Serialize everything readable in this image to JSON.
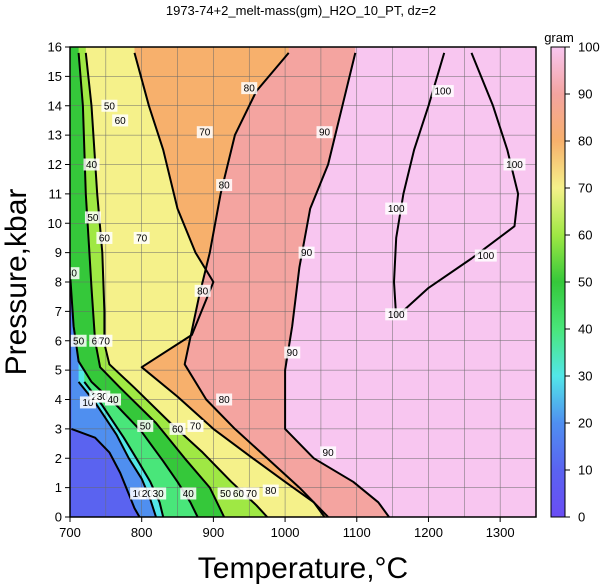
{
  "chart_data": {
    "type": "heatmap",
    "title": "1973-74+2_melt-mass(gm)_H2O_10_PT, dz=2",
    "xlabel": "Temperature,°C",
    "ylabel": "Pressure,kbar",
    "xlim": [
      700,
      1350
    ],
    "ylim": [
      0,
      16
    ],
    "x_ticks": [
      700,
      800,
      900,
      1000,
      1100,
      1200,
      1300
    ],
    "y_ticks": [
      0,
      1,
      2,
      3,
      4,
      5,
      6,
      7,
      8,
      9,
      10,
      11,
      12,
      13,
      14,
      15,
      16
    ],
    "grid": true,
    "colorbar": {
      "label": "gram",
      "range": [
        0,
        100
      ],
      "ticks": [
        0,
        10,
        20,
        30,
        40,
        50,
        60,
        70,
        80,
        90,
        100
      ],
      "placement": "right"
    },
    "contours": [
      {
        "level": 10,
        "points": [
          [
            702,
            3.0
          ],
          [
            735,
            2.7
          ],
          [
            755,
            2.2
          ],
          [
            770,
            1.5
          ],
          [
            780,
            0.9
          ],
          [
            790,
            0.3
          ],
          [
            797,
            0.0
          ]
        ],
        "labels": [
          [
            725,
            3.9
          ],
          [
            795,
            0.8
          ]
        ]
      },
      {
        "level": 20,
        "points": [
          [
            712,
            4.6
          ],
          [
            735,
            3.9
          ],
          [
            765,
            2.8
          ],
          [
            782,
            2.0
          ],
          [
            800,
            1.3
          ],
          [
            812,
            0.6
          ],
          [
            820,
            0.0
          ]
        ],
        "labels": [
          [
            738,
            4.1
          ],
          [
            808,
            0.8
          ]
        ]
      },
      {
        "level": 30,
        "points": [
          [
            720,
            4.6
          ],
          [
            745,
            3.8
          ],
          [
            775,
            2.7
          ],
          [
            795,
            1.9
          ],
          [
            812,
            1.2
          ],
          [
            825,
            0.5
          ],
          [
            830,
            0.0
          ]
        ],
        "labels": [
          [
            745,
            4.1
          ],
          [
            823,
            0.8
          ]
        ]
      },
      {
        "level": 40,
        "points": [
          [
            700,
            8.3
          ],
          [
            705,
            6.5
          ],
          [
            712,
            5.3
          ],
          [
            730,
            4.6
          ],
          [
            765,
            3.8
          ],
          [
            800,
            2.9
          ],
          [
            830,
            1.9
          ],
          [
            850,
            1.2
          ],
          [
            868,
            0.5
          ],
          [
            878,
            0.0
          ]
        ],
        "labels": [
          [
            702,
            8.3
          ],
          [
            760,
            4.0
          ],
          [
            865,
            0.8
          ],
          [
            730,
            12.0
          ]
        ]
      },
      {
        "level": 50,
        "points": [
          [
            712,
            15.8
          ],
          [
            718,
            14.0
          ],
          [
            722,
            11.0
          ],
          [
            727,
            9.0
          ],
          [
            730,
            7.8
          ],
          [
            735,
            6.0
          ],
          [
            742,
            5.1
          ],
          [
            770,
            4.4
          ],
          [
            820,
            3.2
          ],
          [
            860,
            2.0
          ],
          [
            895,
            1.0
          ],
          [
            915,
            0.0
          ]
        ],
        "labels": [
          [
            732,
            10.2
          ],
          [
            712,
            6.0
          ],
          [
            805,
            3.1
          ],
          [
            917,
            0.8
          ],
          [
            755,
            14.0
          ]
        ]
      },
      {
        "level": 60,
        "points": [
          [
            722,
            15.8
          ],
          [
            730,
            14.0
          ],
          [
            738,
            11.0
          ],
          [
            745,
            9.0
          ],
          [
            748,
            7.0
          ],
          [
            748,
            5.9
          ],
          [
            755,
            5.2
          ],
          [
            790,
            4.4
          ],
          [
            840,
            3.2
          ],
          [
            885,
            2.2
          ],
          [
            925,
            1.2
          ],
          [
            960,
            0.4
          ],
          [
            975,
            0.0
          ]
        ],
        "labels": [
          [
            748,
            9.5
          ],
          [
            738,
            6.0
          ],
          [
            850,
            3.0
          ],
          [
            935,
            0.8
          ],
          [
            770,
            13.5
          ]
        ]
      },
      {
        "level": 70,
        "points": [
          [
            790,
            15.8
          ],
          [
            810,
            14.0
          ],
          [
            830,
            12.5
          ],
          [
            850,
            10.5
          ],
          [
            875,
            9.0
          ],
          [
            900,
            8.0
          ],
          [
            870,
            6.2
          ],
          [
            800,
            5.1
          ],
          [
            850,
            4.1
          ],
          [
            900,
            3.0
          ],
          [
            955,
            2.0
          ],
          [
            1000,
            1.2
          ],
          [
            1040,
            0.5
          ],
          [
            1055,
            0.0
          ]
        ],
        "labels": [
          [
            800,
            9.5
          ],
          [
            748,
            6.0
          ],
          [
            875,
            3.1
          ],
          [
            953,
            0.8
          ],
          [
            888,
            13.1
          ]
        ]
      },
      {
        "level": 80,
        "points": [
          [
            1005,
            15.8
          ],
          [
            960,
            14.5
          ],
          [
            930,
            13.0
          ],
          [
            910,
            11.0
          ],
          [
            895,
            9.0
          ],
          [
            880,
            7.5
          ],
          [
            860,
            5.2
          ],
          [
            890,
            4.0
          ],
          [
            930,
            3.0
          ],
          [
            975,
            2.0
          ],
          [
            1020,
            1.0
          ],
          [
            1060,
            0.0
          ]
        ],
        "labels": [
          [
            950,
            14.6
          ],
          [
            915,
            11.3
          ],
          [
            885,
            7.7
          ],
          [
            915,
            4.0
          ],
          [
            980,
            0.9
          ]
        ]
      },
      {
        "level": 90,
        "points": [
          [
            1098,
            15.8
          ],
          [
            1080,
            14.0
          ],
          [
            1060,
            12.0
          ],
          [
            1035,
            10.5
          ],
          [
            1020,
            8.5
          ],
          [
            1010,
            6.5
          ],
          [
            1000,
            5.0
          ],
          [
            1000,
            3.0
          ],
          [
            1040,
            2.0
          ],
          [
            1095,
            1.2
          ],
          [
            1130,
            0.5
          ],
          [
            1145,
            0.0
          ]
        ],
        "labels": [
          [
            1055,
            13.1
          ],
          [
            1030,
            9.0
          ],
          [
            1010,
            5.6
          ],
          [
            1060,
            2.2
          ]
        ]
      },
      {
        "level": 100,
        "points": [
          [
            1260,
            15.8
          ],
          [
            1290,
            14.0
          ],
          [
            1310,
            12.5
          ],
          [
            1325,
            11.0
          ],
          [
            1320,
            9.9
          ],
          [
            1260,
            8.8
          ],
          [
            1200,
            7.8
          ],
          [
            1155,
            6.8
          ],
          [
            1152,
            8.0
          ],
          [
            1155,
            9.5
          ],
          [
            1165,
            11.0
          ],
          [
            1180,
            12.5
          ],
          [
            1200,
            14.0
          ],
          [
            1222,
            15.8
          ]
        ],
        "labels": [
          [
            1220,
            14.5
          ],
          [
            1320,
            12.0
          ],
          [
            1155,
            10.5
          ],
          [
            1280,
            8.9
          ],
          [
            1155,
            6.9
          ]
        ]
      }
    ]
  }
}
